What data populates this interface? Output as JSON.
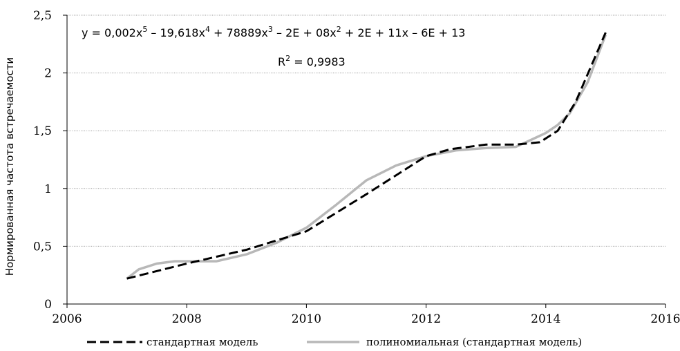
{
  "chart_data": {
    "type": "line",
    "title": "",
    "xlabel": "",
    "ylabel": "Нормированная частота встречаемости",
    "xlim": [
      2006,
      2016
    ],
    "ylim": [
      0,
      2.5
    ],
    "xticks": [
      2006,
      2008,
      2010,
      2012,
      2014,
      2016
    ],
    "xtick_labels": [
      "2006",
      "2008",
      "2010",
      "2012",
      "2014",
      "2016"
    ],
    "yticks": [
      0,
      0.5,
      1,
      1.5,
      2,
      2.5
    ],
    "ytick_labels": [
      "0",
      "0,5",
      "1",
      "1,5",
      "2",
      "2,5"
    ],
    "grid": "horizontal",
    "legend": "bottom",
    "equation": {
      "parts": [
        {
          "t": "y = 0,002x",
          "sup": false
        },
        {
          "t": "5",
          "sup": true
        },
        {
          "t": " – 19,618x",
          "sup": false
        },
        {
          "t": "4",
          "sup": true
        },
        {
          "t": " + 78889x",
          "sup": false
        },
        {
          "t": "3",
          "sup": true
        },
        {
          "t": " – 2E + 08x",
          "sup": false
        },
        {
          "t": "2",
          "sup": true
        },
        {
          "t": " + 2E + 11x – 6E + 13",
          "sup": false
        }
      ]
    },
    "r_squared": {
      "parts": [
        {
          "t": "R",
          "sup": false
        },
        {
          "t": "2",
          "sup": true
        },
        {
          "t": " = 0,9983",
          "sup": false
        }
      ]
    },
    "series": [
      {
        "name": "стандартная модель",
        "color": "#000000",
        "style": "dashed",
        "x": [
          2007,
          2008,
          2009,
          2010,
          2011,
          2012,
          2012.4,
          2013,
          2013.5,
          2013.9,
          2014.2,
          2014.5,
          2015
        ],
        "y": [
          0.22,
          0.35,
          0.47,
          0.63,
          0.95,
          1.28,
          1.34,
          1.38,
          1.38,
          1.4,
          1.5,
          1.75,
          2.35
        ]
      },
      {
        "name": "полиномиальная (стандартная модель)",
        "color": "#b8b8b8",
        "style": "solid",
        "x": [
          2007,
          2007.2,
          2007.5,
          2007.8,
          2008.5,
          2009,
          2009.5,
          2010,
          2010.5,
          2011,
          2011.5,
          2012,
          2012.5,
          2013,
          2013.5,
          2014,
          2014.2,
          2014.4,
          2014.7,
          2015
        ],
        "y": [
          0.22,
          0.3,
          0.35,
          0.37,
          0.37,
          0.43,
          0.53,
          0.66,
          0.86,
          1.07,
          1.2,
          1.28,
          1.33,
          1.35,
          1.36,
          1.48,
          1.55,
          1.65,
          1.92,
          2.33
        ]
      }
    ]
  }
}
